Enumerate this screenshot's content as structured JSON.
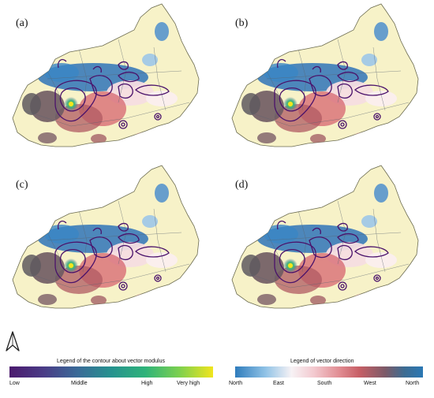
{
  "panels": [
    {
      "id": "a",
      "label": "(a)"
    },
    {
      "id": "b",
      "label": "(b)"
    },
    {
      "id": "c",
      "label": "(c)"
    },
    {
      "id": "d",
      "label": "(d)"
    }
  ],
  "legend_modulus": {
    "title": "Legend of the contour about vector modulus",
    "ticks": [
      "Low",
      "Middle",
      "High",
      "Very high"
    ],
    "colors": [
      "#4b1a6e",
      "#3a6a98",
      "#26928f",
      "#7cd04f",
      "#f1e51d"
    ]
  },
  "legend_direction": {
    "title": "Legend of vector direction",
    "ticks": [
      "North",
      "East",
      "South",
      "West",
      "North"
    ],
    "colors": [
      "#2f7cbc",
      "#f7f2f5",
      "#e08a90",
      "#7c5a68",
      "#2b78b4"
    ]
  },
  "map_colors": {
    "land": "#f7f2c8",
    "boundary": "#6b6b50",
    "north_band": "#2f74b8",
    "east_band": "#f6dde2",
    "south_band": "#d86d76",
    "west_band": "#6e5a62",
    "contour": "#4a126b",
    "peak_low": "#3cb57a",
    "peak_high": "#f4e61c"
  },
  "icons": {
    "north_arrow": "north-arrow-icon"
  }
}
